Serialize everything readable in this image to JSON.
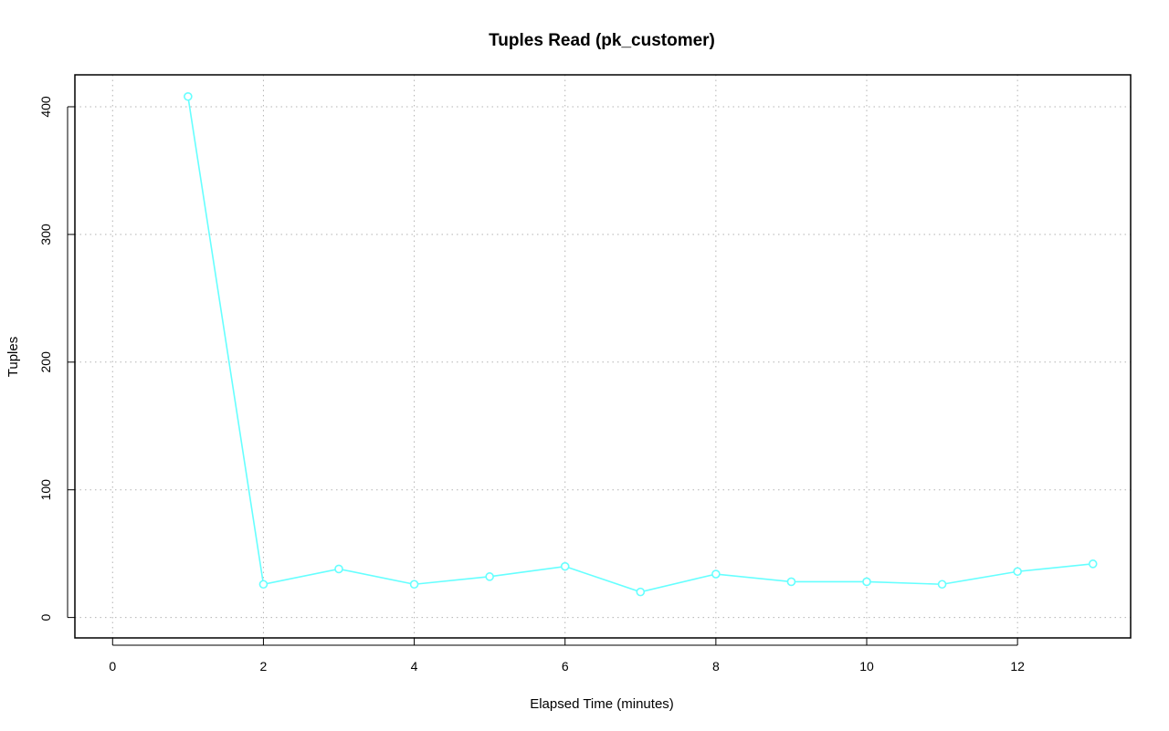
{
  "chart_data": {
    "type": "line",
    "title": "Tuples Read (pk_customer)",
    "xlabel": "Elapsed Time (minutes)",
    "ylabel": "Tuples",
    "xlim": [
      -0.5,
      13.5
    ],
    "ylim": [
      -16,
      425
    ],
    "x_ticks": [
      0,
      2,
      4,
      6,
      8,
      10,
      12
    ],
    "y_ticks": [
      0,
      100,
      200,
      300,
      400
    ],
    "grid": true,
    "legend": "none",
    "series": [
      {
        "color": "#66FFFF",
        "marker": "open-circle",
        "x": [
          1,
          2,
          3,
          4,
          5,
          6,
          7,
          8,
          9,
          10,
          11,
          12,
          13
        ],
        "y": [
          408,
          26,
          38,
          26,
          32,
          40,
          20,
          34,
          28,
          28,
          26,
          36,
          42
        ]
      }
    ]
  }
}
